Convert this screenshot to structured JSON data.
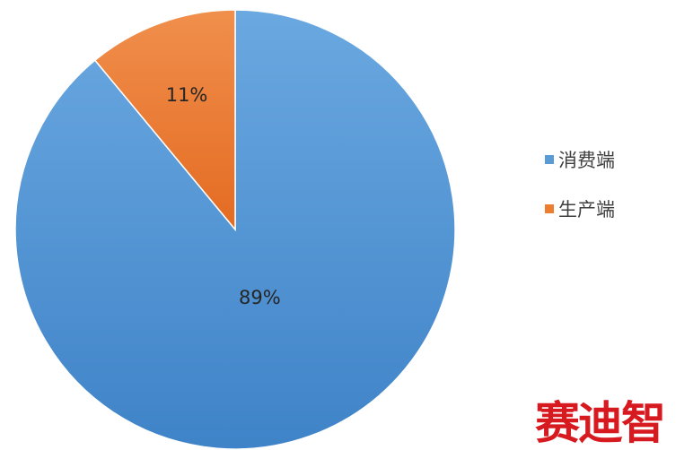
{
  "chart_data": {
    "type": "pie",
    "title": "",
    "slices": [
      {
        "label": "消费端",
        "value": 89,
        "display": "89%",
        "color": "#5b9bd5"
      },
      {
        "label": "生产端",
        "value": 11,
        "display": "11%",
        "color": "#ed7d31"
      }
    ],
    "start_angle_deg": 0,
    "direction": "clockwise",
    "legend_position": "right"
  },
  "watermark": {
    "text": "赛迪智"
  }
}
